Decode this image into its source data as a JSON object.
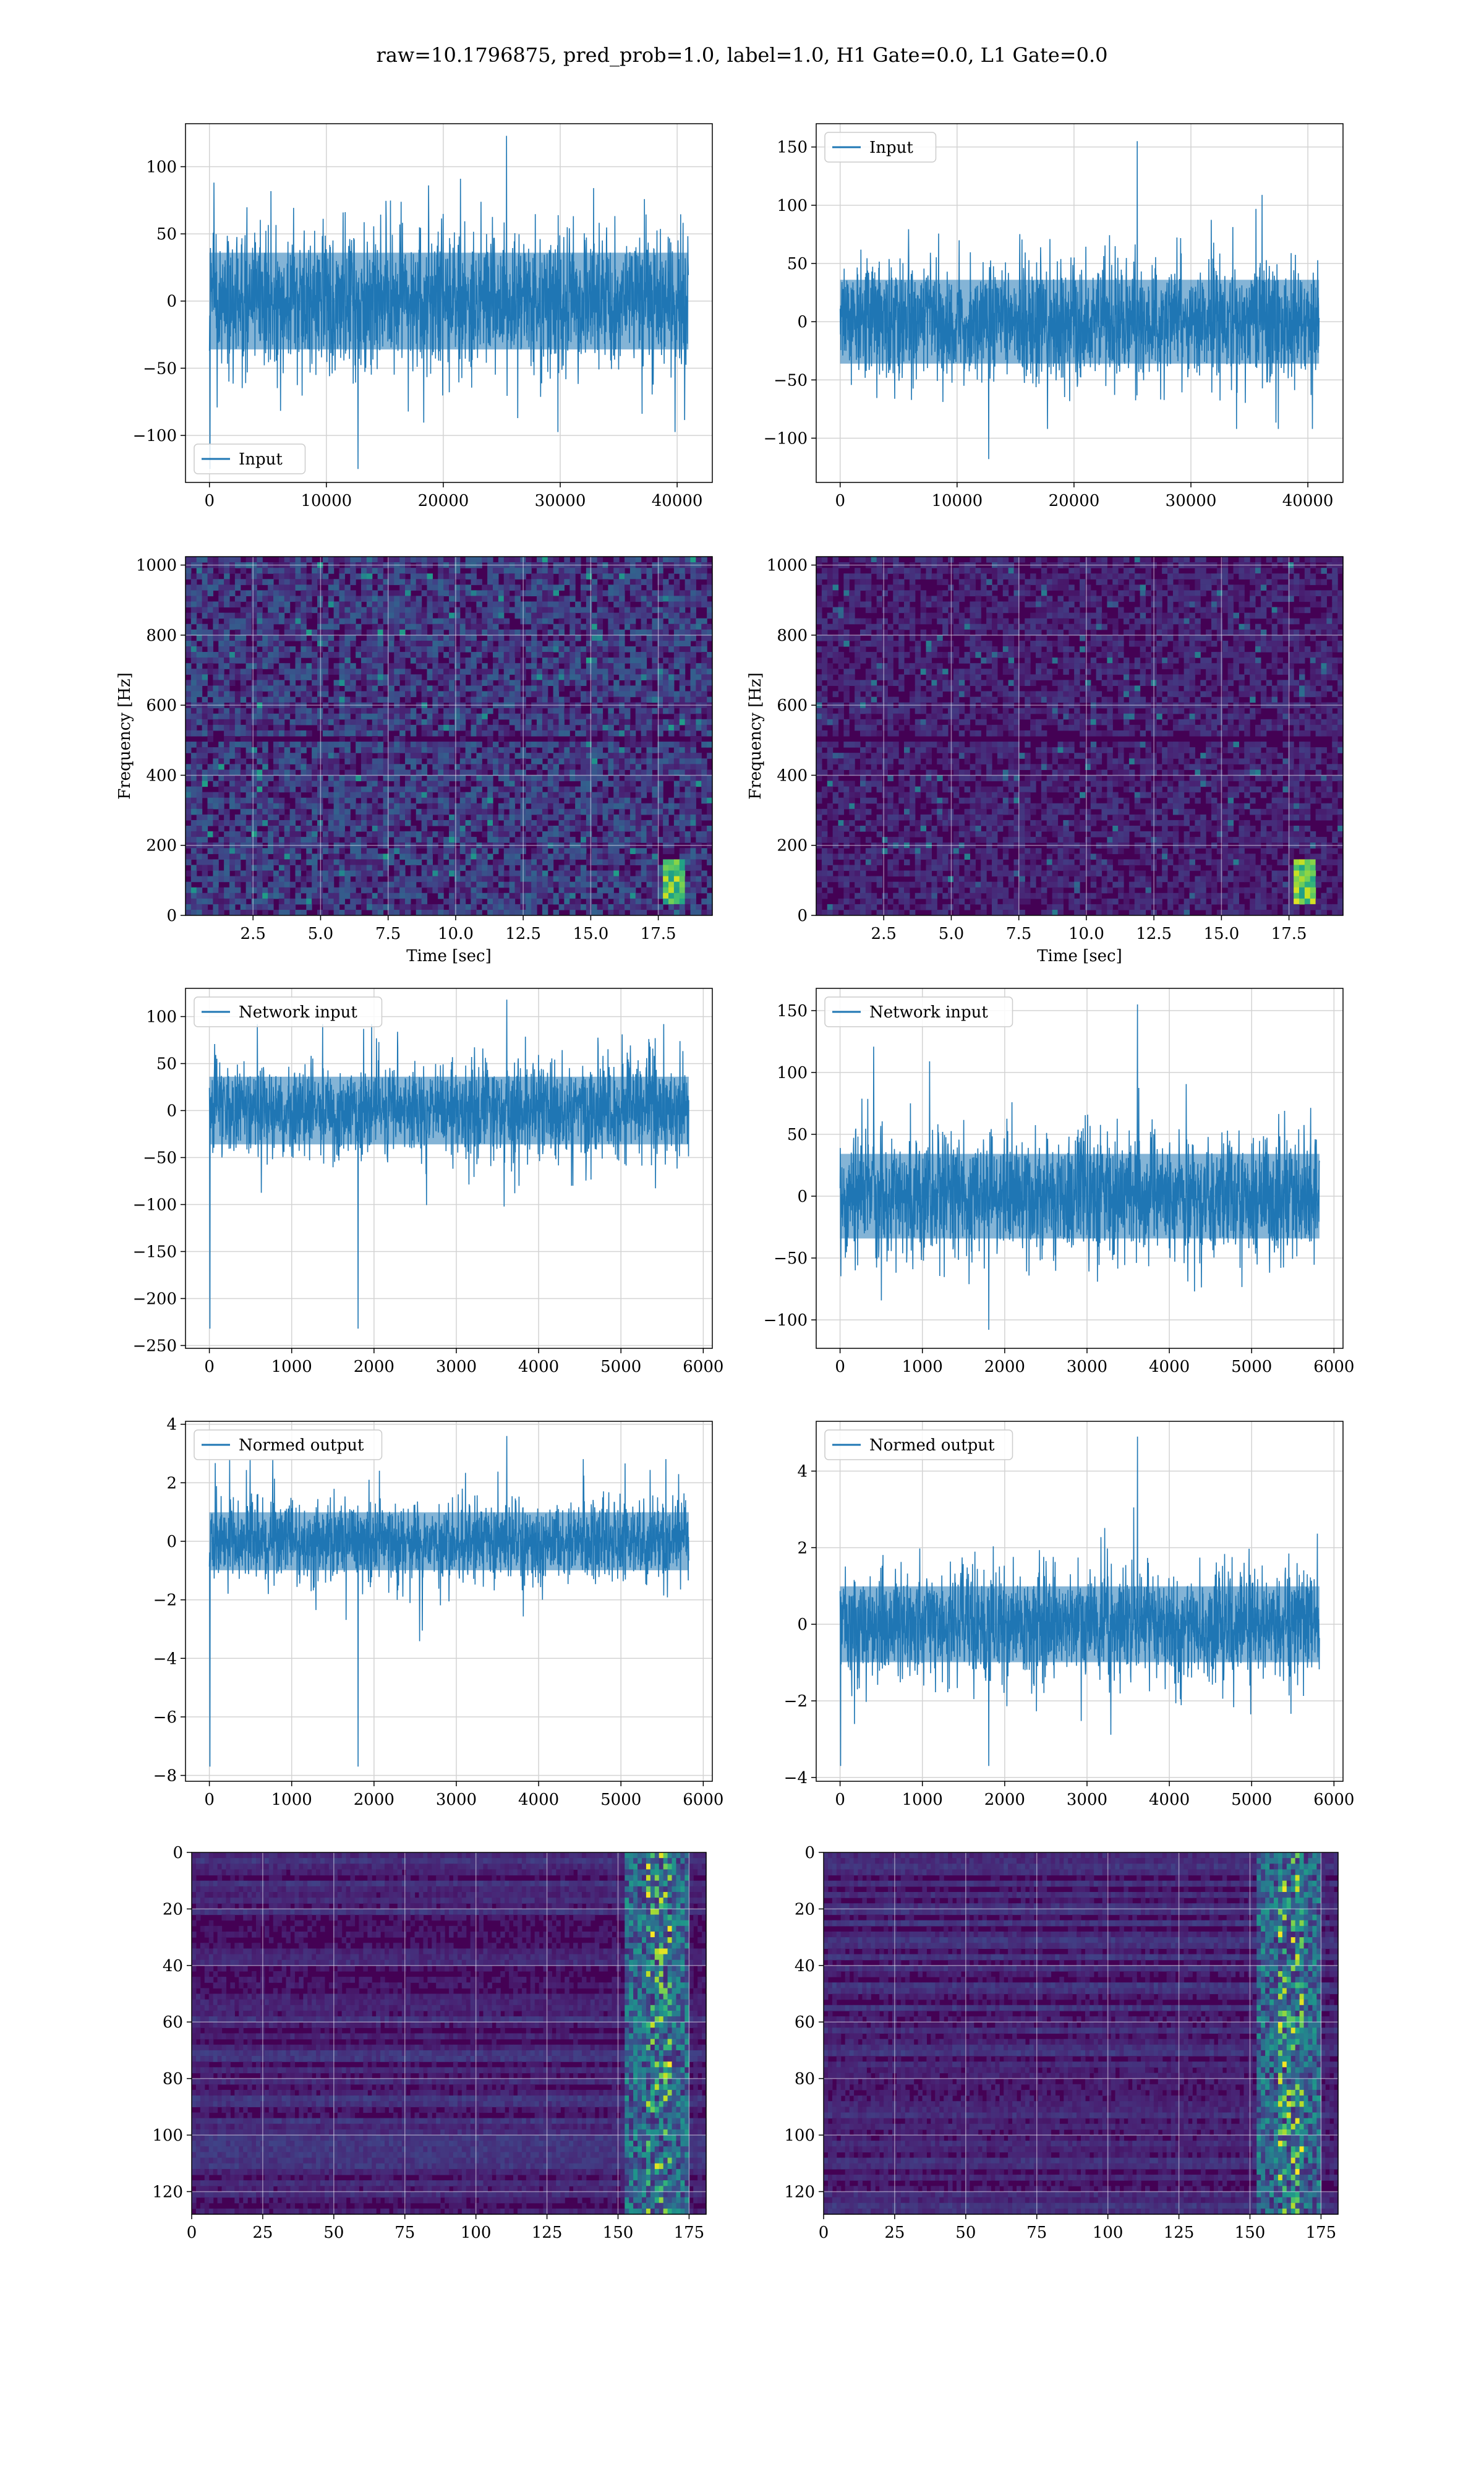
{
  "figure": {
    "title": "raw=10.1796875, pred_prob=1.0, label=1.0, H1 Gate=0.0, L1 Gate=0.0",
    "colors": {
      "line": "#1f77b4",
      "grid": "#d3d3d3",
      "viridis_dark": "#440154"
    }
  },
  "chart_data": [
    {
      "type": "line",
      "panel": "row1-left",
      "series": [
        {
          "name": "Input",
          "amplitude": 40,
          "peak_max": 123,
          "peak_min": -125
        }
      ],
      "x_range": [
        0,
        40960
      ],
      "xlim": [
        -2048,
        43008
      ],
      "ylim": [
        -135,
        132
      ],
      "xticks": [
        0,
        10000,
        20000,
        30000,
        40000
      ],
      "yticks": [
        -100,
        -50,
        0,
        50,
        100
      ],
      "legend": "lower-left",
      "grid": true
    },
    {
      "type": "line",
      "panel": "row1-right",
      "series": [
        {
          "name": "Input",
          "amplitude": 40,
          "peak_max": 155,
          "peak_min": -118
        }
      ],
      "x_range": [
        0,
        40960
      ],
      "xlim": [
        -2048,
        43008
      ],
      "ylim": [
        -138,
        170
      ],
      "xticks": [
        0,
        10000,
        20000,
        30000,
        40000
      ],
      "yticks": [
        -100,
        -50,
        0,
        50,
        100,
        150
      ],
      "legend": "upper-left",
      "grid": true
    },
    {
      "type": "heatmap",
      "panel": "row2-left",
      "colormap": "viridis",
      "xlabel": "Time [sec]",
      "ylabel": "Frequency [Hz]",
      "xlim": [
        0,
        19.5
      ],
      "ylim": [
        0,
        1024
      ],
      "xticks": [
        2.5,
        5.0,
        7.5,
        10.0,
        12.5,
        15.0,
        17.5
      ],
      "xtick_labels": [
        "2.5",
        "5.0",
        "7.5",
        "10.0",
        "12.5",
        "15.0",
        "17.5"
      ],
      "yticks": [
        0,
        200,
        400,
        600,
        800,
        1000
      ],
      "notes": "dark horizontal band near 500 Hz; chirp near t=18 s, 30-150 Hz",
      "grid": true
    },
    {
      "type": "heatmap",
      "panel": "row2-right",
      "colormap": "viridis",
      "xlabel": "Time [sec]",
      "ylabel": "Frequency [Hz]",
      "xlim": [
        0,
        19.5
      ],
      "ylim": [
        0,
        1024
      ],
      "xticks": [
        2.5,
        5.0,
        7.5,
        10.0,
        12.5,
        15.0,
        17.5
      ],
      "xtick_labels": [
        "2.5",
        "5.0",
        "7.5",
        "10.0",
        "12.5",
        "15.0",
        "17.5"
      ],
      "yticks": [
        0,
        200,
        400,
        600,
        800,
        1000
      ],
      "notes": "mostly dark; bright chirp near t=18 s, 30-150 Hz",
      "grid": true
    },
    {
      "type": "line",
      "panel": "row3-left",
      "series": [
        {
          "name": "Network input",
          "amplitude": 40,
          "peak_max": 118,
          "peak_min": -232
        }
      ],
      "x_range": [
        0,
        5824
      ],
      "xlim": [
        -290,
        6110
      ],
      "ylim": [
        -253,
        130
      ],
      "xticks": [
        0,
        1000,
        2000,
        3000,
        4000,
        5000,
        6000
      ],
      "yticks": [
        -250,
        -200,
        -150,
        -100,
        -50,
        0,
        50,
        100
      ],
      "legend": "upper-left",
      "grid": true
    },
    {
      "type": "line",
      "panel": "row3-right",
      "series": [
        {
          "name": "Network input",
          "amplitude": 38,
          "peak_max": 155,
          "peak_min": -108
        }
      ],
      "x_range": [
        0,
        5824
      ],
      "xlim": [
        -290,
        6110
      ],
      "ylim": [
        -123,
        168
      ],
      "xticks": [
        0,
        1000,
        2000,
        3000,
        4000,
        5000,
        6000
      ],
      "yticks": [
        -100,
        -50,
        0,
        50,
        100,
        150
      ],
      "legend": "upper-left",
      "grid": true
    },
    {
      "type": "line",
      "panel": "row4-left",
      "series": [
        {
          "name": "Normed output",
          "amplitude": 1.1,
          "peak_max": 3.6,
          "peak_min": -7.7
        }
      ],
      "x_range": [
        0,
        5824
      ],
      "xlim": [
        -290,
        6110
      ],
      "ylim": [
        -8.2,
        4.1
      ],
      "xticks": [
        0,
        1000,
        2000,
        3000,
        4000,
        5000,
        6000
      ],
      "yticks": [
        -8,
        -6,
        -4,
        -2,
        0,
        2,
        4
      ],
      "legend": "upper-left",
      "grid": true
    },
    {
      "type": "line",
      "panel": "row4-right",
      "series": [
        {
          "name": "Normed output",
          "amplitude": 1.1,
          "peak_max": 4.9,
          "peak_min": -3.7
        }
      ],
      "x_range": [
        0,
        5824
      ],
      "xlim": [
        -290,
        6110
      ],
      "ylim": [
        -4.1,
        5.3
      ],
      "xticks": [
        0,
        1000,
        2000,
        3000,
        4000,
        5000,
        6000
      ],
      "yticks": [
        -4,
        -2,
        0,
        2,
        4
      ],
      "legend": "upper-left",
      "grid": true
    },
    {
      "type": "heatmap",
      "panel": "row5-left",
      "colormap": "viridis",
      "xlim": [
        0,
        181
      ],
      "ylim": [
        128,
        0
      ],
      "xticks": [
        0,
        25,
        50,
        75,
        100,
        125,
        150,
        175
      ],
      "yticks": [
        0,
        20,
        40,
        60,
        80,
        100,
        120
      ],
      "notes": "horizontal streaks; bright activity columns 155-175",
      "grid": true
    },
    {
      "type": "heatmap",
      "panel": "row5-right",
      "colormap": "viridis",
      "xlim": [
        0,
        181
      ],
      "ylim": [
        128,
        0
      ],
      "xticks": [
        0,
        25,
        50,
        75,
        100,
        125,
        150,
        175
      ],
      "yticks": [
        0,
        20,
        40,
        60,
        80,
        100,
        120
      ],
      "notes": "horizontal streaks; bright activity columns 150-175",
      "grid": true
    }
  ]
}
